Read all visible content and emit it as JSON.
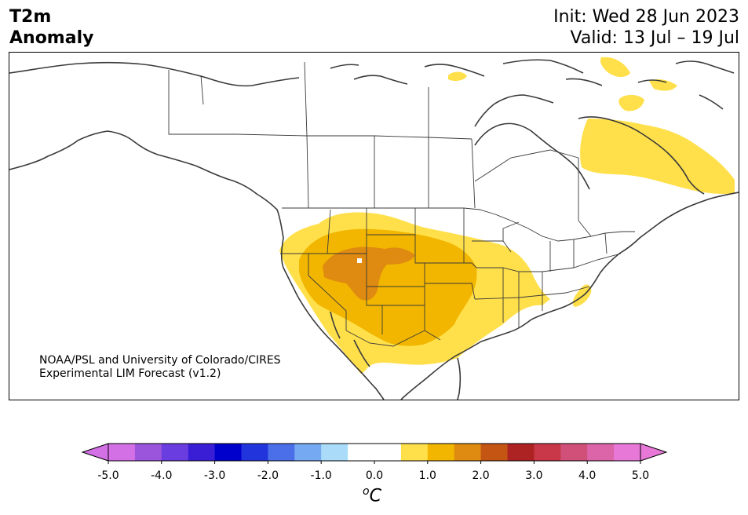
{
  "header": {
    "variable": "T2m",
    "subtitle": "Anomaly",
    "init": "Init: Wed 28 Jun 2023",
    "valid": "Valid: 13 Jul – 19 Jul"
  },
  "credit": {
    "line1": "NOAA/PSL and University of Colorado/CIRES",
    "line2": "Experimental LIM Forecast (v1.2)"
  },
  "colorbar": {
    "unit_sup": "o",
    "unit": "C",
    "ticks": [
      "-5.0",
      "-4.0",
      "-3.0",
      "-2.0",
      "-1.0",
      "0.0",
      "1.0",
      "2.0",
      "3.0",
      "4.0",
      "5.0"
    ],
    "colors": [
      "#d470e6",
      "#9a55dc",
      "#6a3de0",
      "#3a1ed6",
      "#0000cc",
      "#2235dd",
      "#4a6fe8",
      "#75aaf2",
      "#aadcfa",
      "#ffffff",
      "#ffffff",
      "#ffe04a",
      "#f2b600",
      "#df8a10",
      "#c45513",
      "#ad2222",
      "#c83848",
      "#d0507a",
      "#dc64a8",
      "#e878d8"
    ],
    "over_color": "#e878d8",
    "under_color": "#d470e6"
  },
  "map": {
    "anomaly_colors": {
      "band_0_5_1_0": "#ffe04a",
      "band_1_0_1_5": "#f2b600",
      "band_1_5_2_0": "#df8a10"
    },
    "coast_color": "#3a3a3a",
    "border_color": "#3a3a3a"
  }
}
